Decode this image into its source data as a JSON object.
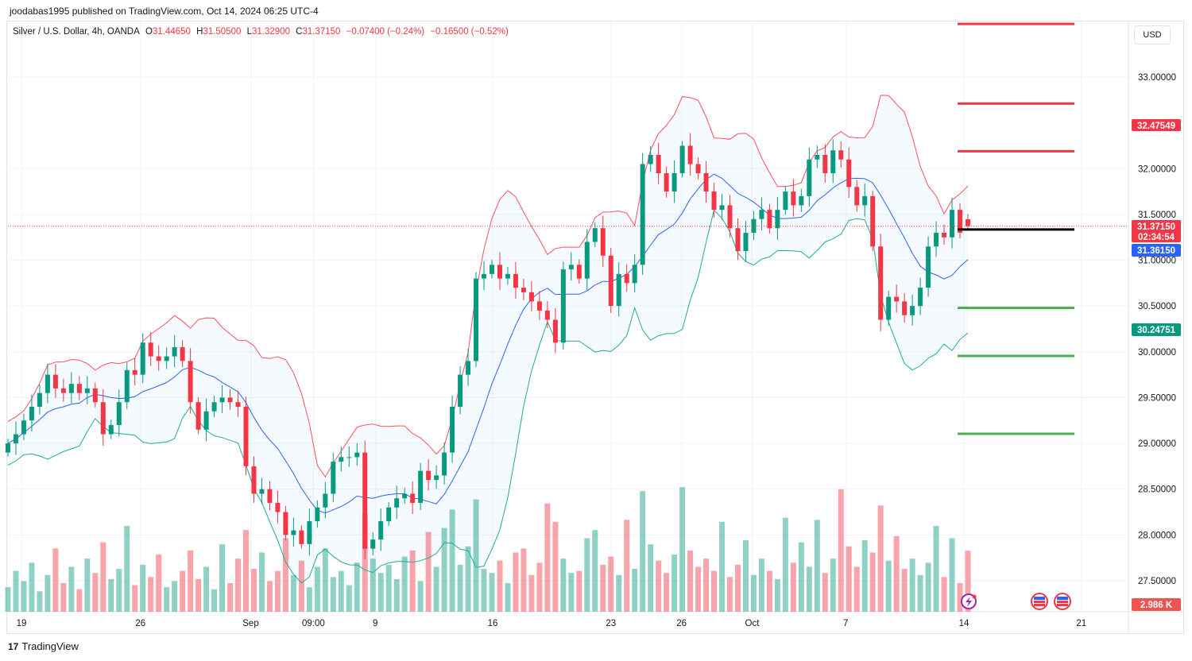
{
  "publisher_line": "joodabas1995 published on TradingView.com, Oct 14, 2024 06:25 UTC-4",
  "legend": {
    "symbol": "Silver / U.S. Dollar, 4h, OANDA",
    "o_label": "O",
    "o": "31.44650",
    "h_label": "H",
    "h": "31.50500",
    "l_label": "L",
    "l": "31.32900",
    "c_label": "C",
    "c": "31.37150",
    "change": "−0.07400 (−0.24%)",
    "change2": "−0.16500 (−0.52%)"
  },
  "currency_button": "USD",
  "brand": "TradingView",
  "colors": {
    "up": "#089981",
    "down": "#f23645",
    "bb_upper": "#f7525f",
    "bb_lower": "#22ab94",
    "bb_basis": "#2962ff",
    "support": "#4caf50",
    "resistance": "#f23645",
    "pivot": "#000000"
  },
  "chart_data": {
    "type": "candlestick",
    "title": "Silver / U.S. Dollar, 4h, OANDA",
    "ylim": [
      27.3,
      33.6
    ],
    "y_ticks": [
      "33.00000",
      "32.00000",
      "31.50000",
      "31.00000",
      "30.50000",
      "30.00000",
      "29.50000",
      "29.00000",
      "28.50000",
      "28.00000",
      "27.50000"
    ],
    "y_tick_values": [
      33.0,
      32.0,
      31.5,
      31.0,
      30.5,
      30.0,
      29.5,
      29.0,
      28.5,
      28.0,
      27.5
    ],
    "x_ticks": [
      {
        "label": "19",
        "bar": 1.7
      },
      {
        "label": "26",
        "bar": 16.7
      },
      {
        "label": "Sep",
        "bar": 30.6
      },
      {
        "label": "09:00",
        "bar": 38.5
      },
      {
        "label": "9",
        "bar": 46.3
      },
      {
        "label": "16",
        "bar": 61.1
      },
      {
        "label": "23",
        "bar": 76.0
      },
      {
        "label": "26",
        "bar": 84.9
      },
      {
        "label": "Oct",
        "bar": 93.8
      },
      {
        "label": "7",
        "bar": 105.6
      },
      {
        "label": "14",
        "bar": 120.5
      },
      {
        "label": "21",
        "bar": 135.3
      }
    ],
    "first_open": 28.9,
    "closes": [
      29.0,
      29.1,
      29.25,
      29.4,
      29.55,
      29.75,
      29.6,
      29.55,
      29.65,
      29.55,
      29.6,
      29.45,
      29.1,
      29.2,
      29.45,
      29.8,
      29.75,
      30.1,
      29.95,
      29.9,
      29.95,
      30.05,
      29.9,
      29.45,
      29.15,
      29.35,
      29.45,
      29.5,
      29.45,
      29.4,
      28.75,
      28.45,
      28.5,
      28.35,
      28.25,
      28.0,
      28.05,
      27.9,
      28.15,
      28.3,
      28.45,
      28.8,
      28.85,
      28.85,
      28.9,
      27.85,
      27.95,
      28.15,
      28.3,
      28.4,
      28.45,
      28.35,
      28.7,
      28.6,
      28.65,
      28.9,
      29.4,
      29.75,
      29.9,
      30.8,
      30.85,
      30.95,
      30.8,
      30.85,
      30.7,
      30.65,
      30.55,
      30.45,
      30.35,
      30.1,
      30.9,
      30.95,
      30.8,
      31.2,
      31.35,
      31.05,
      30.5,
      30.85,
      30.75,
      30.95,
      32.05,
      32.15,
      31.95,
      31.75,
      31.95,
      32.25,
      32.05,
      31.95,
      31.75,
      31.55,
      31.6,
      31.35,
      31.1,
      31.3,
      31.45,
      31.55,
      31.35,
      31.55,
      31.75,
      31.6,
      31.7,
      32.1,
      32.15,
      31.95,
      32.2,
      32.1,
      31.8,
      31.6,
      31.7,
      31.15,
      30.35,
      30.6,
      30.55,
      30.4,
      30.5,
      30.7,
      31.15,
      31.3,
      31.25,
      31.55,
      31.3,
      31.3715
    ],
    "last_bar": {
      "o": 31.4465,
      "h": 31.505,
      "l": 31.329,
      "c": 31.3715
    },
    "volumes_k": [
      1.2,
      2.0,
      1.5,
      2.4,
      1.0,
      1.8,
      3.1,
      1.4,
      2.2,
      1.1,
      2.6,
      1.9,
      3.4,
      1.6,
      2.1,
      4.2,
      1.3,
      2.3,
      1.7,
      2.8,
      1.2,
      1.5,
      2.0,
      3.0,
      1.6,
      2.2,
      1.1,
      3.3,
      1.4,
      2.6,
      4.0,
      2.1,
      2.9,
      1.5,
      2.0,
      3.6,
      1.8,
      2.5,
      1.2,
      2.2,
      3.1,
      1.7,
      2.0,
      1.3,
      2.4,
      4.8,
      2.6,
      1.9,
      2.3,
      1.6,
      2.7,
      3.0,
      1.5,
      3.9,
      2.2,
      4.1,
      5.0,
      2.3,
      3.2,
      5.5,
      2.1,
      1.9,
      2.5,
      1.4,
      2.9,
      3.1,
      1.8,
      2.4,
      5.3,
      4.4,
      2.6,
      1.9,
      2.0,
      3.6,
      4.0,
      2.3,
      2.7,
      1.8,
      4.5,
      2.1,
      5.9,
      3.3,
      2.5,
      1.9,
      2.8,
      6.1,
      3.0,
      2.2,
      2.6,
      2.0,
      4.4,
      1.7,
      2.3,
      3.5,
      1.8,
      2.6,
      2.0,
      1.6,
      4.6,
      2.4,
      3.4,
      2.2,
      4.5,
      1.9,
      2.6,
      6.0,
      3.2,
      2.2,
      3.5,
      2.9,
      5.2,
      2.5,
      3.7,
      2.1,
      2.6,
      1.8,
      2.4,
      4.2,
      1.7,
      3.6,
      1.4,
      2.986
    ],
    "volume_current": "2.986 K",
    "bollinger_period": 10,
    "bollinger_mult": 2,
    "price_labels": {
      "bb_upper": "32.47549",
      "last": "31.37150",
      "countdown": "02:34:54",
      "bb_basis": "31.36150",
      "bb_lower": "30.24751"
    },
    "levels": [
      {
        "type": "resistance",
        "price": 33.58
      },
      {
        "type": "resistance",
        "price": 32.71
      },
      {
        "type": "resistance",
        "price": 32.19
      },
      {
        "type": "pivot",
        "price": 31.335
      },
      {
        "type": "support",
        "price": 30.48
      },
      {
        "type": "support",
        "price": 29.955
      },
      {
        "type": "support",
        "price": 29.105
      }
    ]
  }
}
